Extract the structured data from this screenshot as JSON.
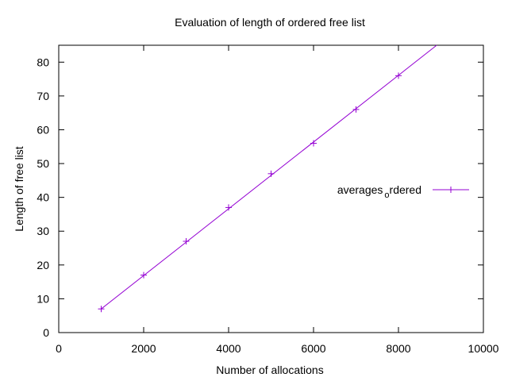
{
  "chart_data": {
    "type": "line",
    "title": "Evaluation of length of ordered free list",
    "xlabel": "Number of allocations",
    "ylabel": "Length of free list",
    "xlim": [
      0,
      10000
    ],
    "ylim": [
      0,
      85
    ],
    "xticks": [
      0,
      2000,
      4000,
      6000,
      8000,
      10000
    ],
    "yticks": [
      0,
      10,
      20,
      30,
      40,
      50,
      60,
      70,
      80
    ],
    "grid": false,
    "legend_position": "right",
    "series": [
      {
        "name": "averages_ordered",
        "legend_main": "averages",
        "legend_sub": "o",
        "legend_rest": "rdered",
        "color": "#9400d3",
        "x": [
          1000,
          2000,
          3000,
          4000,
          5000,
          6000,
          7000,
          8000
        ],
        "y": [
          7,
          17,
          27,
          37,
          47,
          56,
          66,
          76
        ]
      }
    ],
    "fit_line": {
      "color": "#9400d3",
      "x": [
        1000,
        8900
      ],
      "y": [
        7,
        85
      ]
    }
  }
}
